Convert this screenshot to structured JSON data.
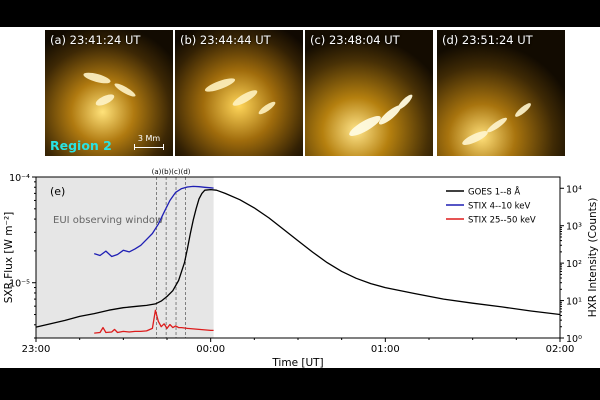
{
  "panels": [
    {
      "label": "(a) 23:41:24 UT"
    },
    {
      "label": "(b) 23:44:44 UT"
    },
    {
      "label": "(c) 23:48:04 UT"
    },
    {
      "label": "(d) 23:51:24 UT"
    }
  ],
  "region_label": "Region 2",
  "scale_bar_label": "3 Mm",
  "colors": {
    "goes": "#000000",
    "stix_low": "#1f1fb4",
    "stix_high": "#dd1c1c",
    "window_shade": "#e6e6e6",
    "region_text": "#29e3e3"
  },
  "chart_data": {
    "type": "line",
    "panel_label": "(e)",
    "window_label": "EUI observing window",
    "time_markers": [
      "(a)",
      "(b)",
      "(c)",
      "(d)"
    ],
    "xlabel": "Time [UT]",
    "ylabel_left": "SXR Flux [W m⁻²]",
    "ylabel_right": "HXR Intensity (Counts)",
    "x_ticks": [
      "23:00",
      "00:00",
      "01:00",
      "02:00"
    ],
    "y_left_ticks": [
      "10⁻⁵",
      "10⁻⁴"
    ],
    "y_right_ticks": [
      "10⁰",
      "10¹",
      "10²",
      "10³",
      "10⁴"
    ],
    "xlim_minutes_from_2300": [
      0,
      180
    ],
    "ylim_left": [
      3e-06,
      0.0001
    ],
    "ylim_right": [
      1,
      20000
    ],
    "log_left": true,
    "log_right": true,
    "shaded_window_minutes": [
      0,
      61
    ],
    "marker_times_minutes": [
      41.4,
      44.7,
      48.1,
      51.4
    ],
    "legend_position": "top-right",
    "series": [
      {
        "name": "GOES 1--8 Å",
        "axis": "left",
        "color": "#000000",
        "x": [
          0,
          5,
          10,
          15,
          20,
          25,
          30,
          35,
          38,
          41,
          43,
          45,
          47,
          49,
          51,
          52,
          53,
          54,
          55,
          56,
          57,
          58,
          60,
          62,
          65,
          70,
          75,
          80,
          85,
          90,
          95,
          100,
          105,
          110,
          115,
          120,
          130,
          140,
          150,
          160,
          170,
          180
        ],
        "y": [
          3.8e-06,
          4.1e-06,
          4.4e-06,
          4.8e-06,
          5.1e-06,
          5.5e-06,
          5.8e-06,
          6e-06,
          6.1e-06,
          6.3e-06,
          6.7e-06,
          7.4e-06,
          8.4e-06,
          1.05e-05,
          1.55e-05,
          2.1e-05,
          2.9e-05,
          3.9e-05,
          5e-05,
          6.2e-05,
          7e-05,
          7.5e-05,
          7.6e-05,
          7.5e-05,
          7e-05,
          6.1e-05,
          5.1e-05,
          4.1e-05,
          3.2e-05,
          2.5e-05,
          1.95e-05,
          1.55e-05,
          1.28e-05,
          1.1e-05,
          9.8e-06,
          9e-06,
          7.9e-06,
          7e-06,
          6.4e-06,
          5.9e-06,
          5.4e-06,
          5e-06
        ]
      },
      {
        "name": "STIX 4--10 keV",
        "axis": "right",
        "color": "#1f1fb4",
        "x": [
          20,
          22,
          24,
          26,
          28,
          30,
          32,
          34,
          36,
          38,
          40,
          42,
          44,
          46,
          48,
          50,
          52,
          54,
          56,
          58,
          60,
          61
        ],
        "y": [
          180,
          160,
          210,
          150,
          170,
          220,
          200,
          240,
          300,
          430,
          620,
          1100,
          2300,
          4700,
          7800,
          9800,
          10800,
          11200,
          11000,
          10600,
          10300,
          10100
        ]
      },
      {
        "name": "STIX 25--50 keV",
        "axis": "right",
        "color": "#dd1c1c",
        "x": [
          20,
          22,
          23,
          24,
          26,
          27,
          28,
          30,
          32,
          34,
          36,
          38,
          40,
          41,
          42,
          43,
          44,
          45,
          46,
          47,
          48,
          49,
          50,
          52,
          54,
          56,
          58,
          60,
          61
        ],
        "y": [
          1.35,
          1.4,
          1.9,
          1.4,
          1.45,
          1.7,
          1.4,
          1.5,
          1.45,
          1.5,
          1.5,
          1.55,
          1.8,
          5.5,
          2.8,
          2.0,
          2.4,
          1.8,
          2.3,
          1.9,
          2.1,
          1.9,
          1.9,
          1.8,
          1.75,
          1.7,
          1.65,
          1.6,
          1.6
        ]
      }
    ]
  }
}
